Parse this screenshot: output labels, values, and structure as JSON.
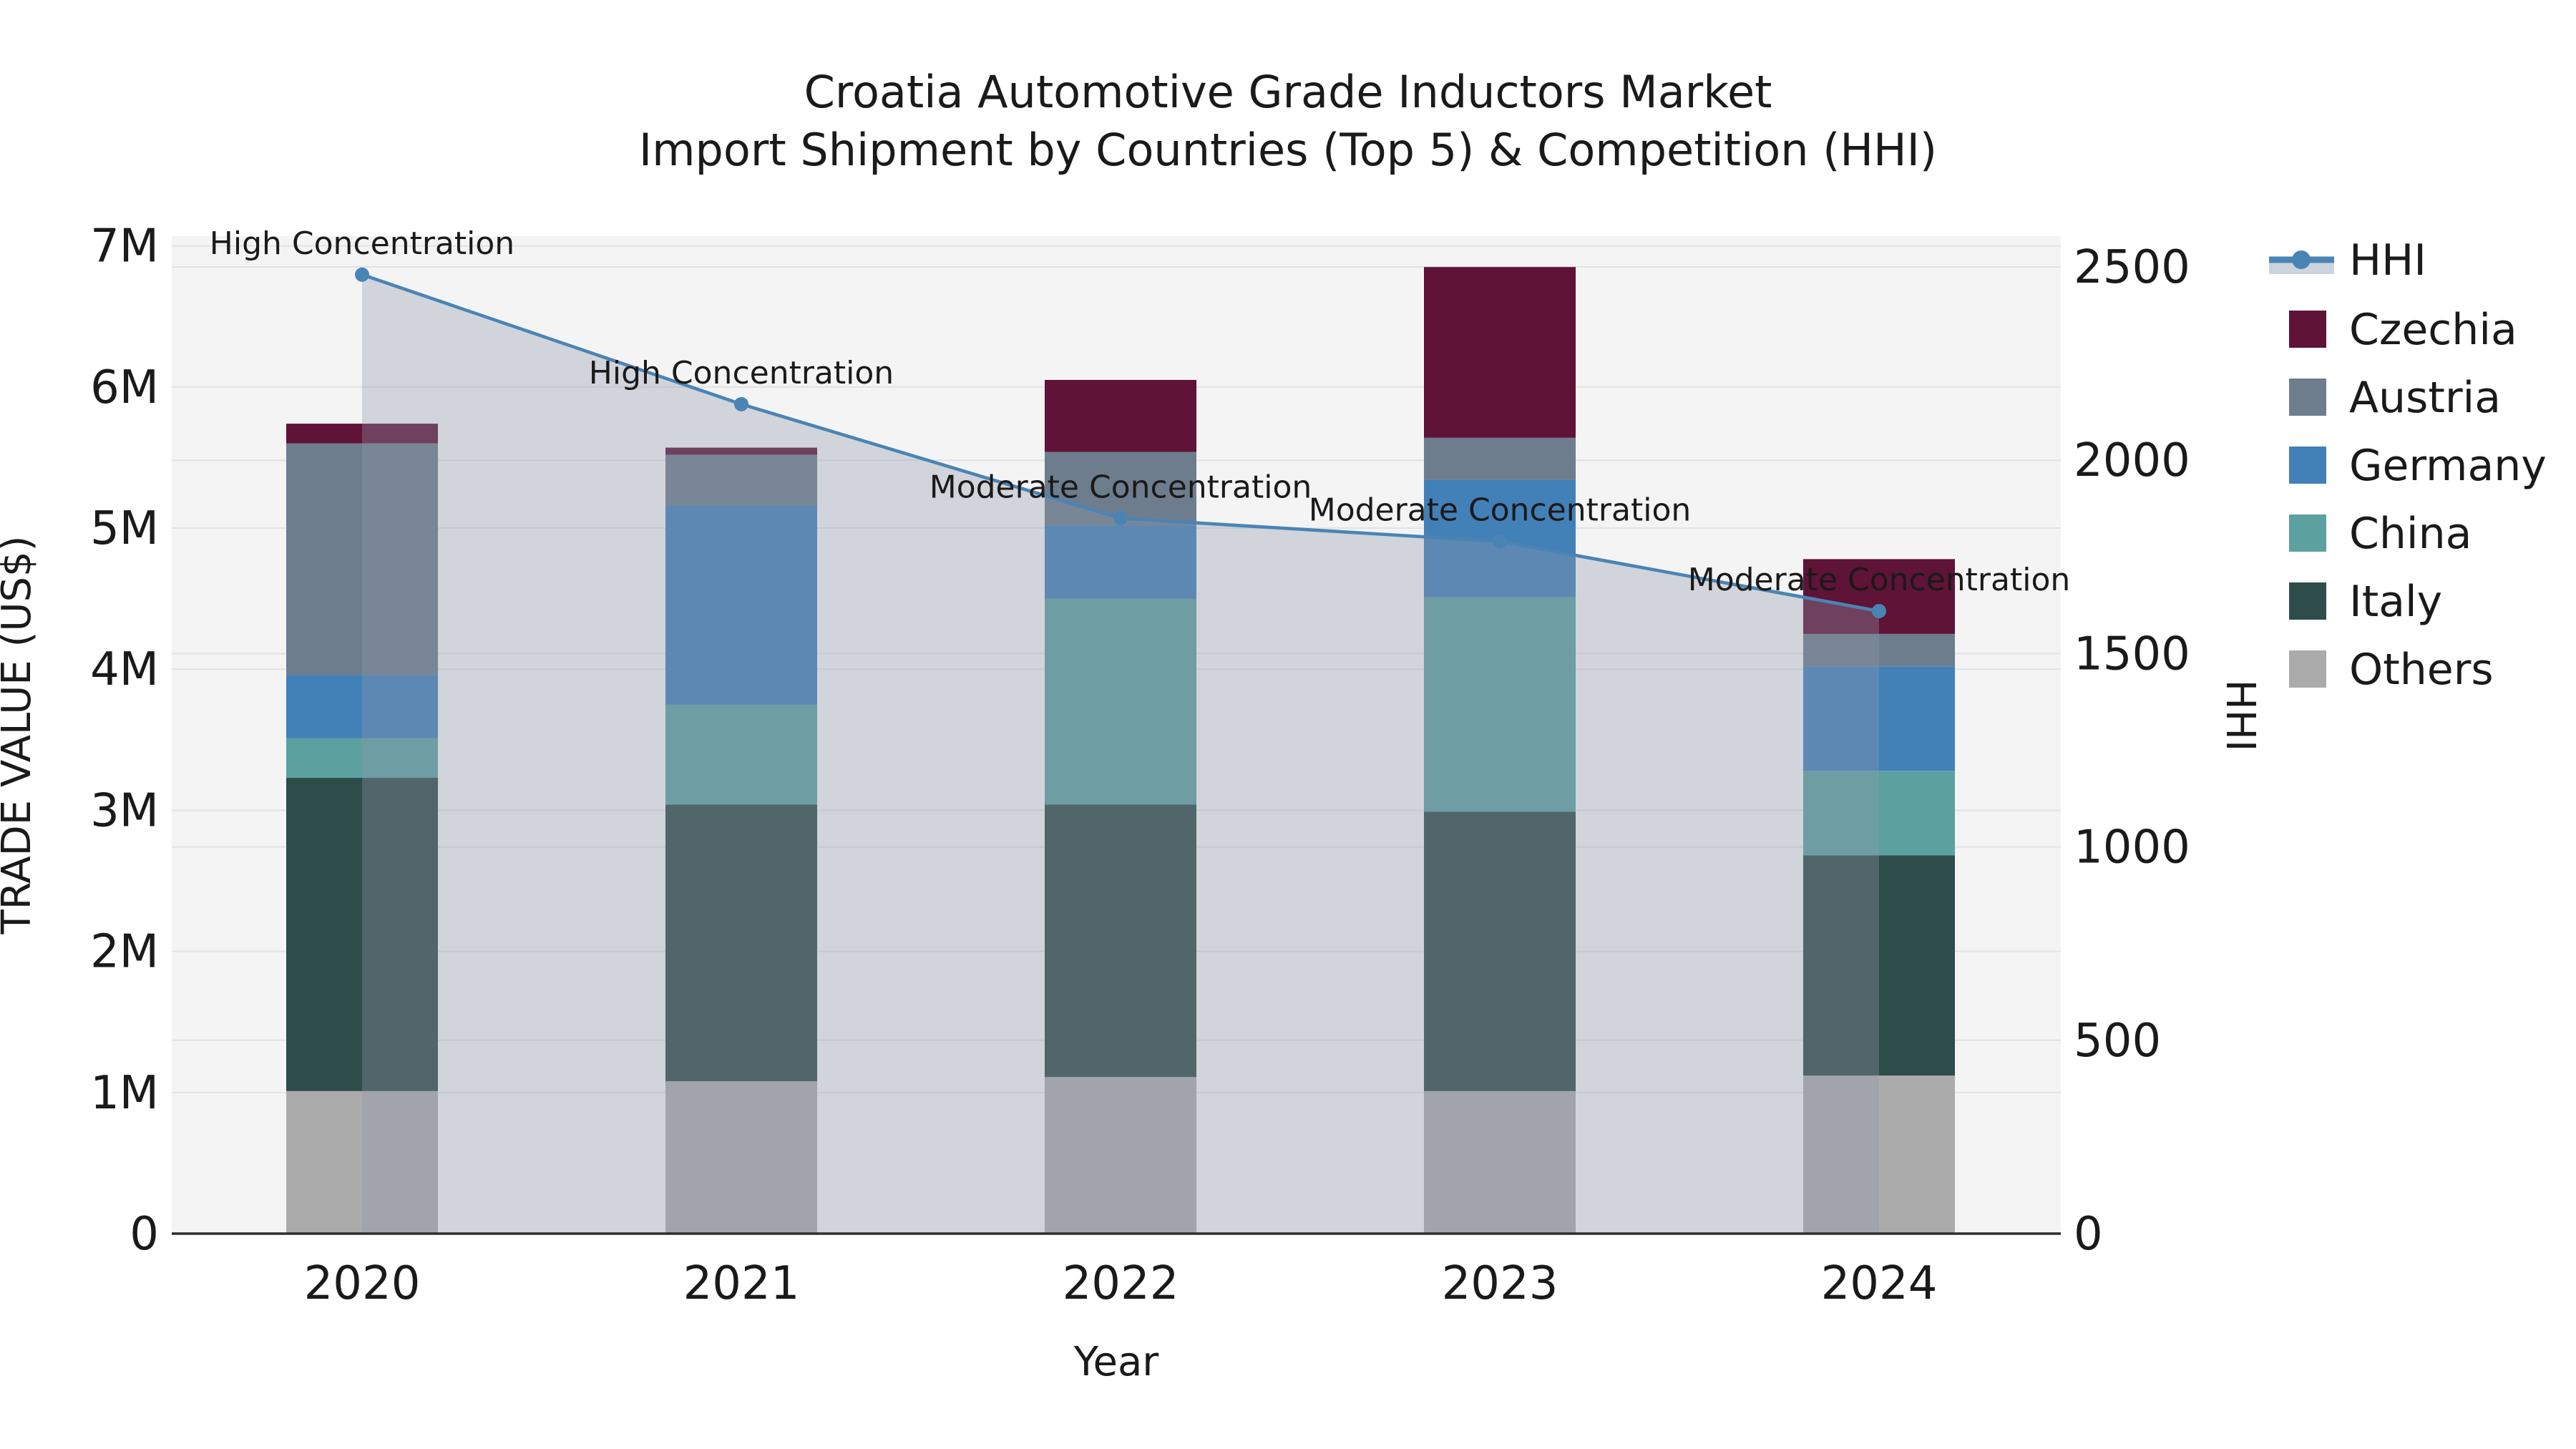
{
  "title": {
    "line1": "Croatia Automotive Grade Inductors Market",
    "line2": "Import Shipment by Countries (Top 5) & Competition (HHI)"
  },
  "axes": {
    "x_label": "Year",
    "y_left_label": "TRADE VALUE (US$)",
    "y_right_label": "HHI",
    "y_left_ticks": [
      "0",
      "1M",
      "2M",
      "3M",
      "4M",
      "5M",
      "6M",
      "7M"
    ],
    "y_right_ticks": [
      "0",
      "500",
      "1000",
      "1500",
      "2000",
      "2500"
    ]
  },
  "colors": {
    "plot_background": "#f4f4f4",
    "gridline": "#e2e2e2",
    "axis_line": "#2e2e2e",
    "hhi_line": "#4a84b5",
    "hhi_area_fill": "rgba(144,152,168,0.35)",
    "hhi_legend_band": "#cdd3dc",
    "czechia": "#5e1337",
    "austria": "#6e7d8d",
    "germany": "#4280b8",
    "china": "#5da0a0",
    "italy": "#2e4c49",
    "others": "#ababab"
  },
  "legend": {
    "items": [
      {
        "label": "HHI",
        "type": "line",
        "color_key": "hhi_line"
      },
      {
        "label": "Czechia",
        "type": "patch",
        "color_key": "czechia"
      },
      {
        "label": "Austria",
        "type": "patch",
        "color_key": "austria"
      },
      {
        "label": "Germany",
        "type": "patch",
        "color_key": "germany"
      },
      {
        "label": "China",
        "type": "patch",
        "color_key": "china"
      },
      {
        "label": "Italy",
        "type": "patch",
        "color_key": "italy"
      },
      {
        "label": "Others",
        "type": "patch",
        "color_key": "others"
      }
    ]
  },
  "chart_data": {
    "type": "combo: stacked-bar (left axis) + line with area fill (right axis)",
    "categories": [
      "2020",
      "2021",
      "2022",
      "2023",
      "2024"
    ],
    "unit_left": "US$ millions (left axis, trade value)",
    "series": [
      {
        "name": "Others",
        "color_key": "others",
        "values": [
          1.01,
          1.08,
          1.11,
          1.01,
          1.12
        ]
      },
      {
        "name": "Italy",
        "color_key": "italy",
        "values": [
          2.22,
          1.96,
          1.93,
          1.98,
          1.56
        ]
      },
      {
        "name": "China",
        "color_key": "china",
        "values": [
          0.28,
          0.71,
          1.46,
          1.52,
          0.6
        ]
      },
      {
        "name": "Germany",
        "color_key": "germany",
        "values": [
          0.45,
          1.41,
          0.52,
          0.83,
          0.74
        ]
      },
      {
        "name": "Austria",
        "color_key": "austria",
        "values": [
          1.64,
          0.36,
          0.52,
          0.3,
          0.23
        ]
      },
      {
        "name": "Czechia",
        "color_key": "czechia",
        "values": [
          0.14,
          0.05,
          0.51,
          1.21,
          0.53
        ]
      }
    ],
    "bar_totals_M": [
      5.74,
      5.57,
      6.05,
      6.85,
      4.78
    ],
    "line_series": {
      "name": "HHI",
      "values": [
        2480,
        2145,
        1850,
        1790,
        1610
      ]
    },
    "annotations": [
      {
        "category": "2020",
        "text": "High Concentration"
      },
      {
        "category": "2021",
        "text": "High Concentration"
      },
      {
        "category": "2022",
        "text": "Moderate Concentration"
      },
      {
        "category": "2023",
        "text": "Moderate Concentration"
      },
      {
        "category": "2024",
        "text": "Moderate Concentration"
      }
    ],
    "ylim_left": [
      0,
      7070000
    ],
    "ylim_right": [
      0,
      2580
    ],
    "grid": true,
    "legend_position": "right"
  }
}
